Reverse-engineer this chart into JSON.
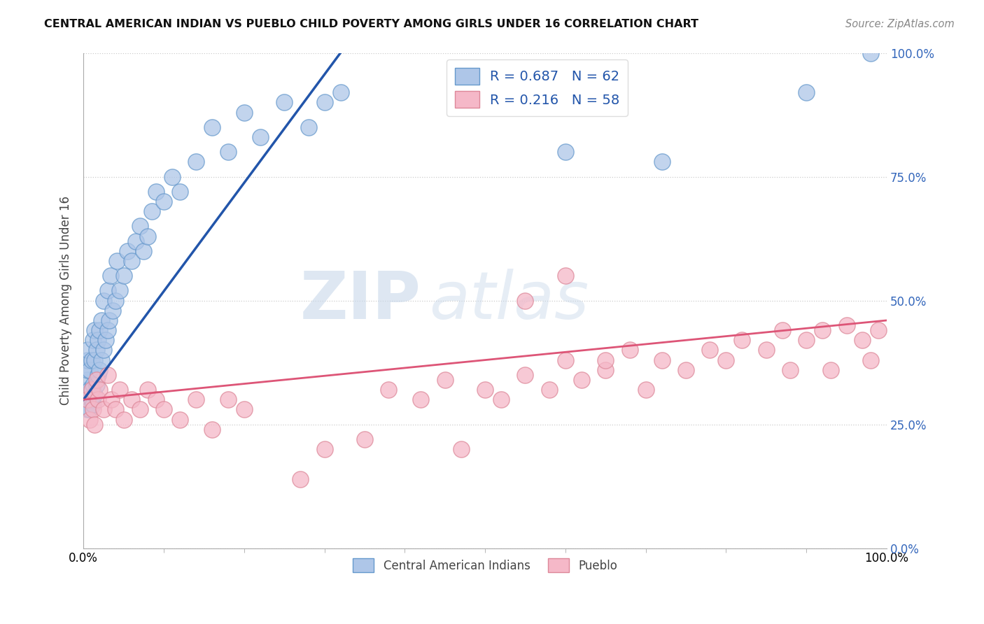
{
  "title": "CENTRAL AMERICAN INDIAN VS PUEBLO CHILD POVERTY AMONG GIRLS UNDER 16 CORRELATION CHART",
  "source": "Source: ZipAtlas.com",
  "xlabel": "",
  "ylabel": "Child Poverty Among Girls Under 16",
  "xlim": [
    0,
    1
  ],
  "ylim": [
    0,
    1
  ],
  "ytick_labels": [
    "0.0%",
    "25.0%",
    "50.0%",
    "75.0%",
    "100.0%"
  ],
  "ytick_values": [
    0,
    0.25,
    0.5,
    0.75,
    1.0
  ],
  "blue_R": 0.687,
  "blue_N": 62,
  "pink_R": 0.216,
  "pink_N": 58,
  "blue_color": "#aec6e8",
  "blue_edge_color": "#6699cc",
  "blue_line_color": "#2255aa",
  "pink_color": "#f5b8c8",
  "pink_edge_color": "#dd8899",
  "pink_line_color": "#dd5577",
  "legend_label_blue": "Central American Indians",
  "legend_label_pink": "Pueblo",
  "watermark_zip": "ZIP",
  "watermark_atlas": "atlas",
  "background_color": "#ffffff",
  "grid_color": "#cccccc",
  "blue_line_x0": 0.0,
  "blue_line_y0": 0.3,
  "blue_line_x1": 0.32,
  "blue_line_y1": 1.0,
  "pink_line_x0": 0.0,
  "pink_line_y0": 0.3,
  "pink_line_x1": 1.0,
  "pink_line_y1": 0.46,
  "blue_scatter_x": [
    0.005,
    0.005,
    0.005,
    0.005,
    0.005,
    0.005,
    0.005,
    0.008,
    0.008,
    0.008,
    0.01,
    0.01,
    0.012,
    0.012,
    0.012,
    0.014,
    0.014,
    0.014,
    0.016,
    0.016,
    0.018,
    0.018,
    0.02,
    0.02,
    0.022,
    0.022,
    0.025,
    0.025,
    0.028,
    0.03,
    0.03,
    0.032,
    0.034,
    0.036,
    0.04,
    0.042,
    0.045,
    0.05,
    0.055,
    0.06,
    0.065,
    0.07,
    0.075,
    0.08,
    0.085,
    0.09,
    0.1,
    0.11,
    0.12,
    0.14,
    0.16,
    0.18,
    0.2,
    0.22,
    0.25,
    0.28,
    0.3,
    0.32,
    0.6,
    0.72,
    0.9,
    0.98
  ],
  "blue_scatter_y": [
    0.28,
    0.3,
    0.32,
    0.34,
    0.36,
    0.38,
    0.4,
    0.28,
    0.32,
    0.36,
    0.3,
    0.38,
    0.29,
    0.33,
    0.42,
    0.31,
    0.38,
    0.44,
    0.33,
    0.4,
    0.35,
    0.42,
    0.36,
    0.44,
    0.38,
    0.46,
    0.4,
    0.5,
    0.42,
    0.44,
    0.52,
    0.46,
    0.55,
    0.48,
    0.5,
    0.58,
    0.52,
    0.55,
    0.6,
    0.58,
    0.62,
    0.65,
    0.6,
    0.63,
    0.68,
    0.72,
    0.7,
    0.75,
    0.72,
    0.78,
    0.85,
    0.8,
    0.88,
    0.83,
    0.9,
    0.85,
    0.9,
    0.92,
    0.8,
    0.78,
    0.92,
    1.0
  ],
  "pink_scatter_x": [
    0.005,
    0.008,
    0.01,
    0.012,
    0.014,
    0.016,
    0.018,
    0.02,
    0.025,
    0.03,
    0.035,
    0.04,
    0.045,
    0.05,
    0.06,
    0.07,
    0.08,
    0.09,
    0.1,
    0.12,
    0.14,
    0.16,
    0.18,
    0.2,
    0.5,
    0.52,
    0.55,
    0.58,
    0.6,
    0.62,
    0.65,
    0.68,
    0.7,
    0.72,
    0.75,
    0.78,
    0.8,
    0.82,
    0.85,
    0.87,
    0.88,
    0.9,
    0.92,
    0.93,
    0.95,
    0.97,
    0.98,
    0.99,
    0.27,
    0.3,
    0.35,
    0.38,
    0.42,
    0.45,
    0.47,
    0.55,
    0.6,
    0.65
  ],
  "pink_scatter_y": [
    0.3,
    0.26,
    0.32,
    0.28,
    0.25,
    0.34,
    0.3,
    0.32,
    0.28,
    0.35,
    0.3,
    0.28,
    0.32,
    0.26,
    0.3,
    0.28,
    0.32,
    0.3,
    0.28,
    0.26,
    0.3,
    0.24,
    0.3,
    0.28,
    0.32,
    0.3,
    0.35,
    0.32,
    0.38,
    0.34,
    0.36,
    0.4,
    0.32,
    0.38,
    0.36,
    0.4,
    0.38,
    0.42,
    0.4,
    0.44,
    0.36,
    0.42,
    0.44,
    0.36,
    0.45,
    0.42,
    0.38,
    0.44,
    0.14,
    0.2,
    0.22,
    0.32,
    0.3,
    0.34,
    0.2,
    0.5,
    0.55,
    0.38
  ]
}
